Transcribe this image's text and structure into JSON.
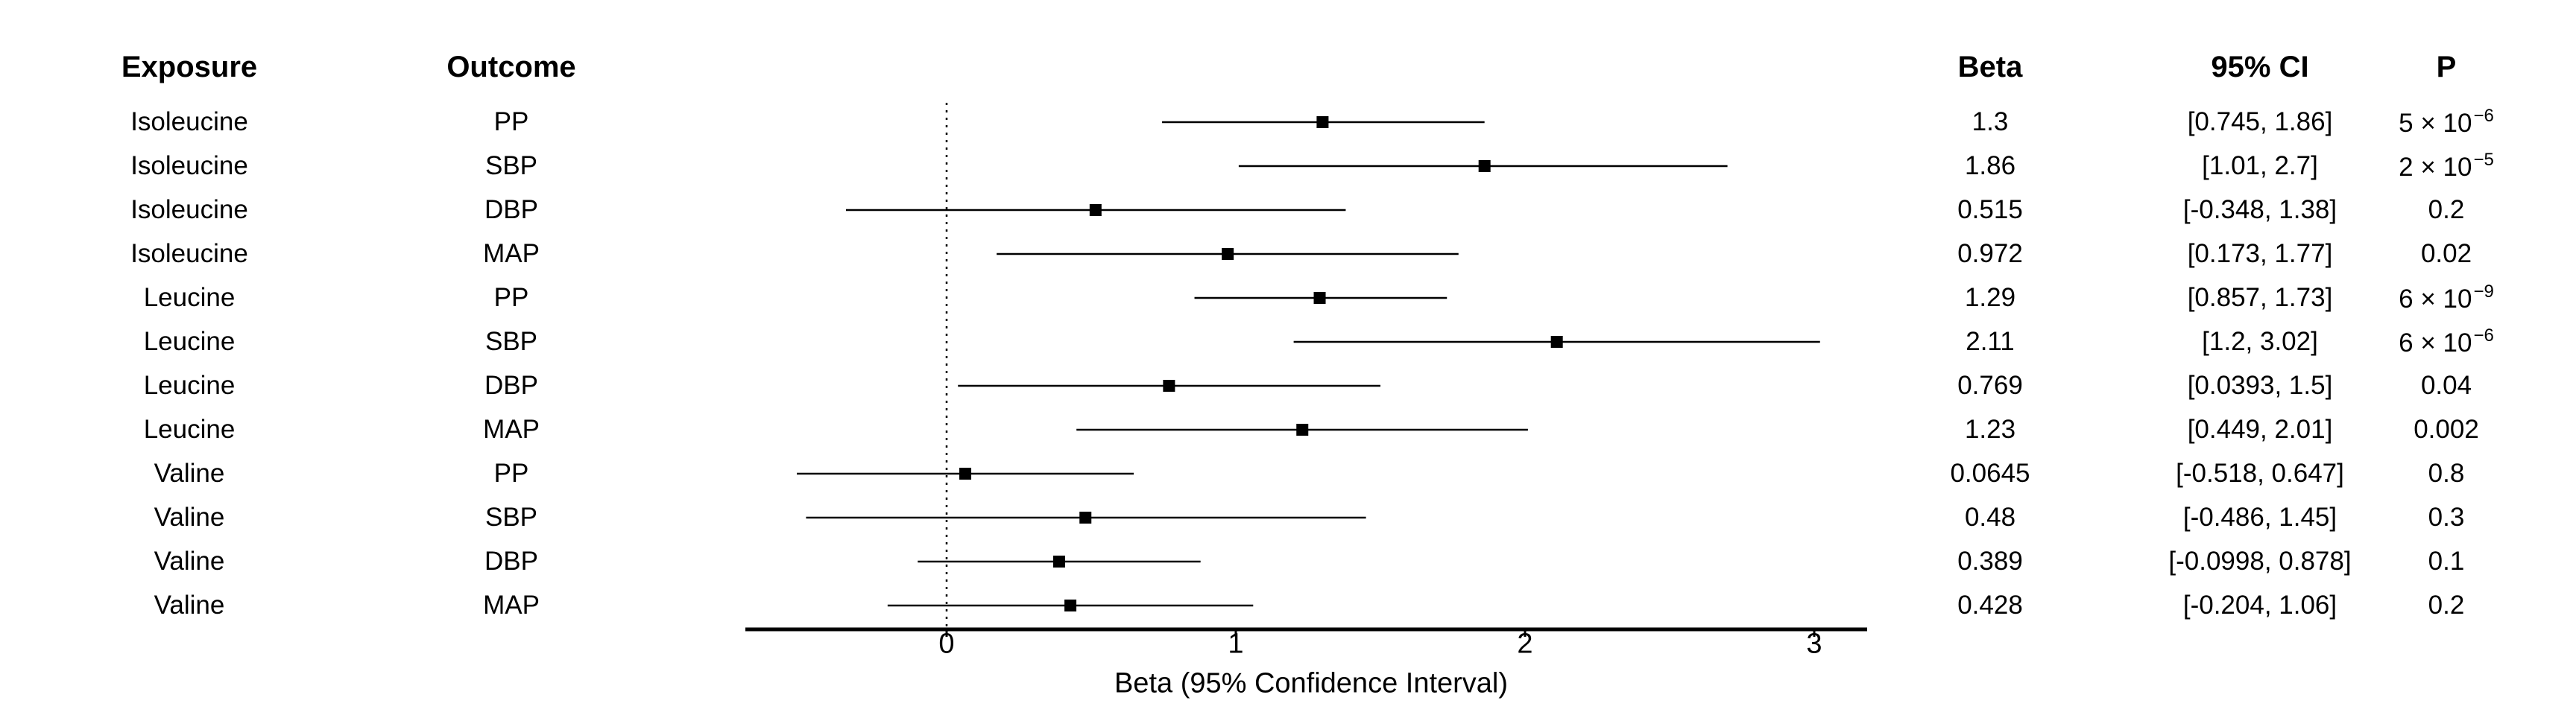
{
  "chart_data": {
    "type": "forest",
    "columns": {
      "exposure": "Exposure",
      "outcome": "Outcome",
      "beta": "Beta",
      "ci": "95% CI",
      "p": "P"
    },
    "xlabel": "Beta (95% Confidence Interval)",
    "xlim": [
      -0.69,
      3.2
    ],
    "xticks": [
      0,
      1,
      2,
      3
    ],
    "reference_line": 0,
    "rows": [
      {
        "exposure": "Isoleucine",
        "outcome": "PP",
        "beta": 1.3,
        "lower": 0.745,
        "upper": 1.86,
        "beta_text": "1.3",
        "ci_text": "[0.745, 1.86]",
        "p_base": "5 × 10",
        "p_exp": "−6"
      },
      {
        "exposure": "Isoleucine",
        "outcome": "SBP",
        "beta": 1.86,
        "lower": 1.01,
        "upper": 2.7,
        "beta_text": "1.86",
        "ci_text": "[1.01, 2.7]",
        "p_base": "2 × 10",
        "p_exp": "−5"
      },
      {
        "exposure": "Isoleucine",
        "outcome": "DBP",
        "beta": 0.515,
        "lower": -0.348,
        "upper": 1.38,
        "beta_text": "0.515",
        "ci_text": "[-0.348, 1.38]",
        "p_base": "0.2",
        "p_exp": ""
      },
      {
        "exposure": "Isoleucine",
        "outcome": "MAP",
        "beta": 0.972,
        "lower": 0.173,
        "upper": 1.77,
        "beta_text": "0.972",
        "ci_text": "[0.173, 1.77]",
        "p_base": "0.02",
        "p_exp": ""
      },
      {
        "exposure": "Leucine",
        "outcome": "PP",
        "beta": 1.29,
        "lower": 0.857,
        "upper": 1.73,
        "beta_text": "1.29",
        "ci_text": "[0.857, 1.73]",
        "p_base": "6 × 10",
        "p_exp": "−9"
      },
      {
        "exposure": "Leucine",
        "outcome": "SBP",
        "beta": 2.11,
        "lower": 1.2,
        "upper": 3.02,
        "beta_text": "2.11",
        "ci_text": "[1.2, 3.02]",
        "p_base": "6 × 10",
        "p_exp": "−6"
      },
      {
        "exposure": "Leucine",
        "outcome": "DBP",
        "beta": 0.769,
        "lower": 0.0393,
        "upper": 1.5,
        "beta_text": "0.769",
        "ci_text": "[0.0393, 1.5]",
        "p_base": "0.04",
        "p_exp": ""
      },
      {
        "exposure": "Leucine",
        "outcome": "MAP",
        "beta": 1.23,
        "lower": 0.449,
        "upper": 2.01,
        "beta_text": "1.23",
        "ci_text": "[0.449, 2.01]",
        "p_base": "0.002",
        "p_exp": ""
      },
      {
        "exposure": "Valine",
        "outcome": "PP",
        "beta": 0.0645,
        "lower": -0.518,
        "upper": 0.647,
        "beta_text": "0.0645",
        "ci_text": "[-0.518, 0.647]",
        "p_base": "0.8",
        "p_exp": ""
      },
      {
        "exposure": "Valine",
        "outcome": "SBP",
        "beta": 0.48,
        "lower": -0.486,
        "upper": 1.45,
        "beta_text": "0.48",
        "ci_text": "[-0.486, 1.45]",
        "p_base": "0.3",
        "p_exp": ""
      },
      {
        "exposure": "Valine",
        "outcome": "DBP",
        "beta": 0.389,
        "lower": -0.0998,
        "upper": 0.878,
        "beta_text": "0.389",
        "ci_text": "[-0.0998, 0.878]",
        "p_base": "0.1",
        "p_exp": ""
      },
      {
        "exposure": "Valine",
        "outcome": "MAP",
        "beta": 0.428,
        "lower": -0.204,
        "upper": 1.06,
        "beta_text": "0.428",
        "ci_text": "[-0.204, 1.06]",
        "p_base": "0.2",
        "p_exp": ""
      }
    ]
  }
}
